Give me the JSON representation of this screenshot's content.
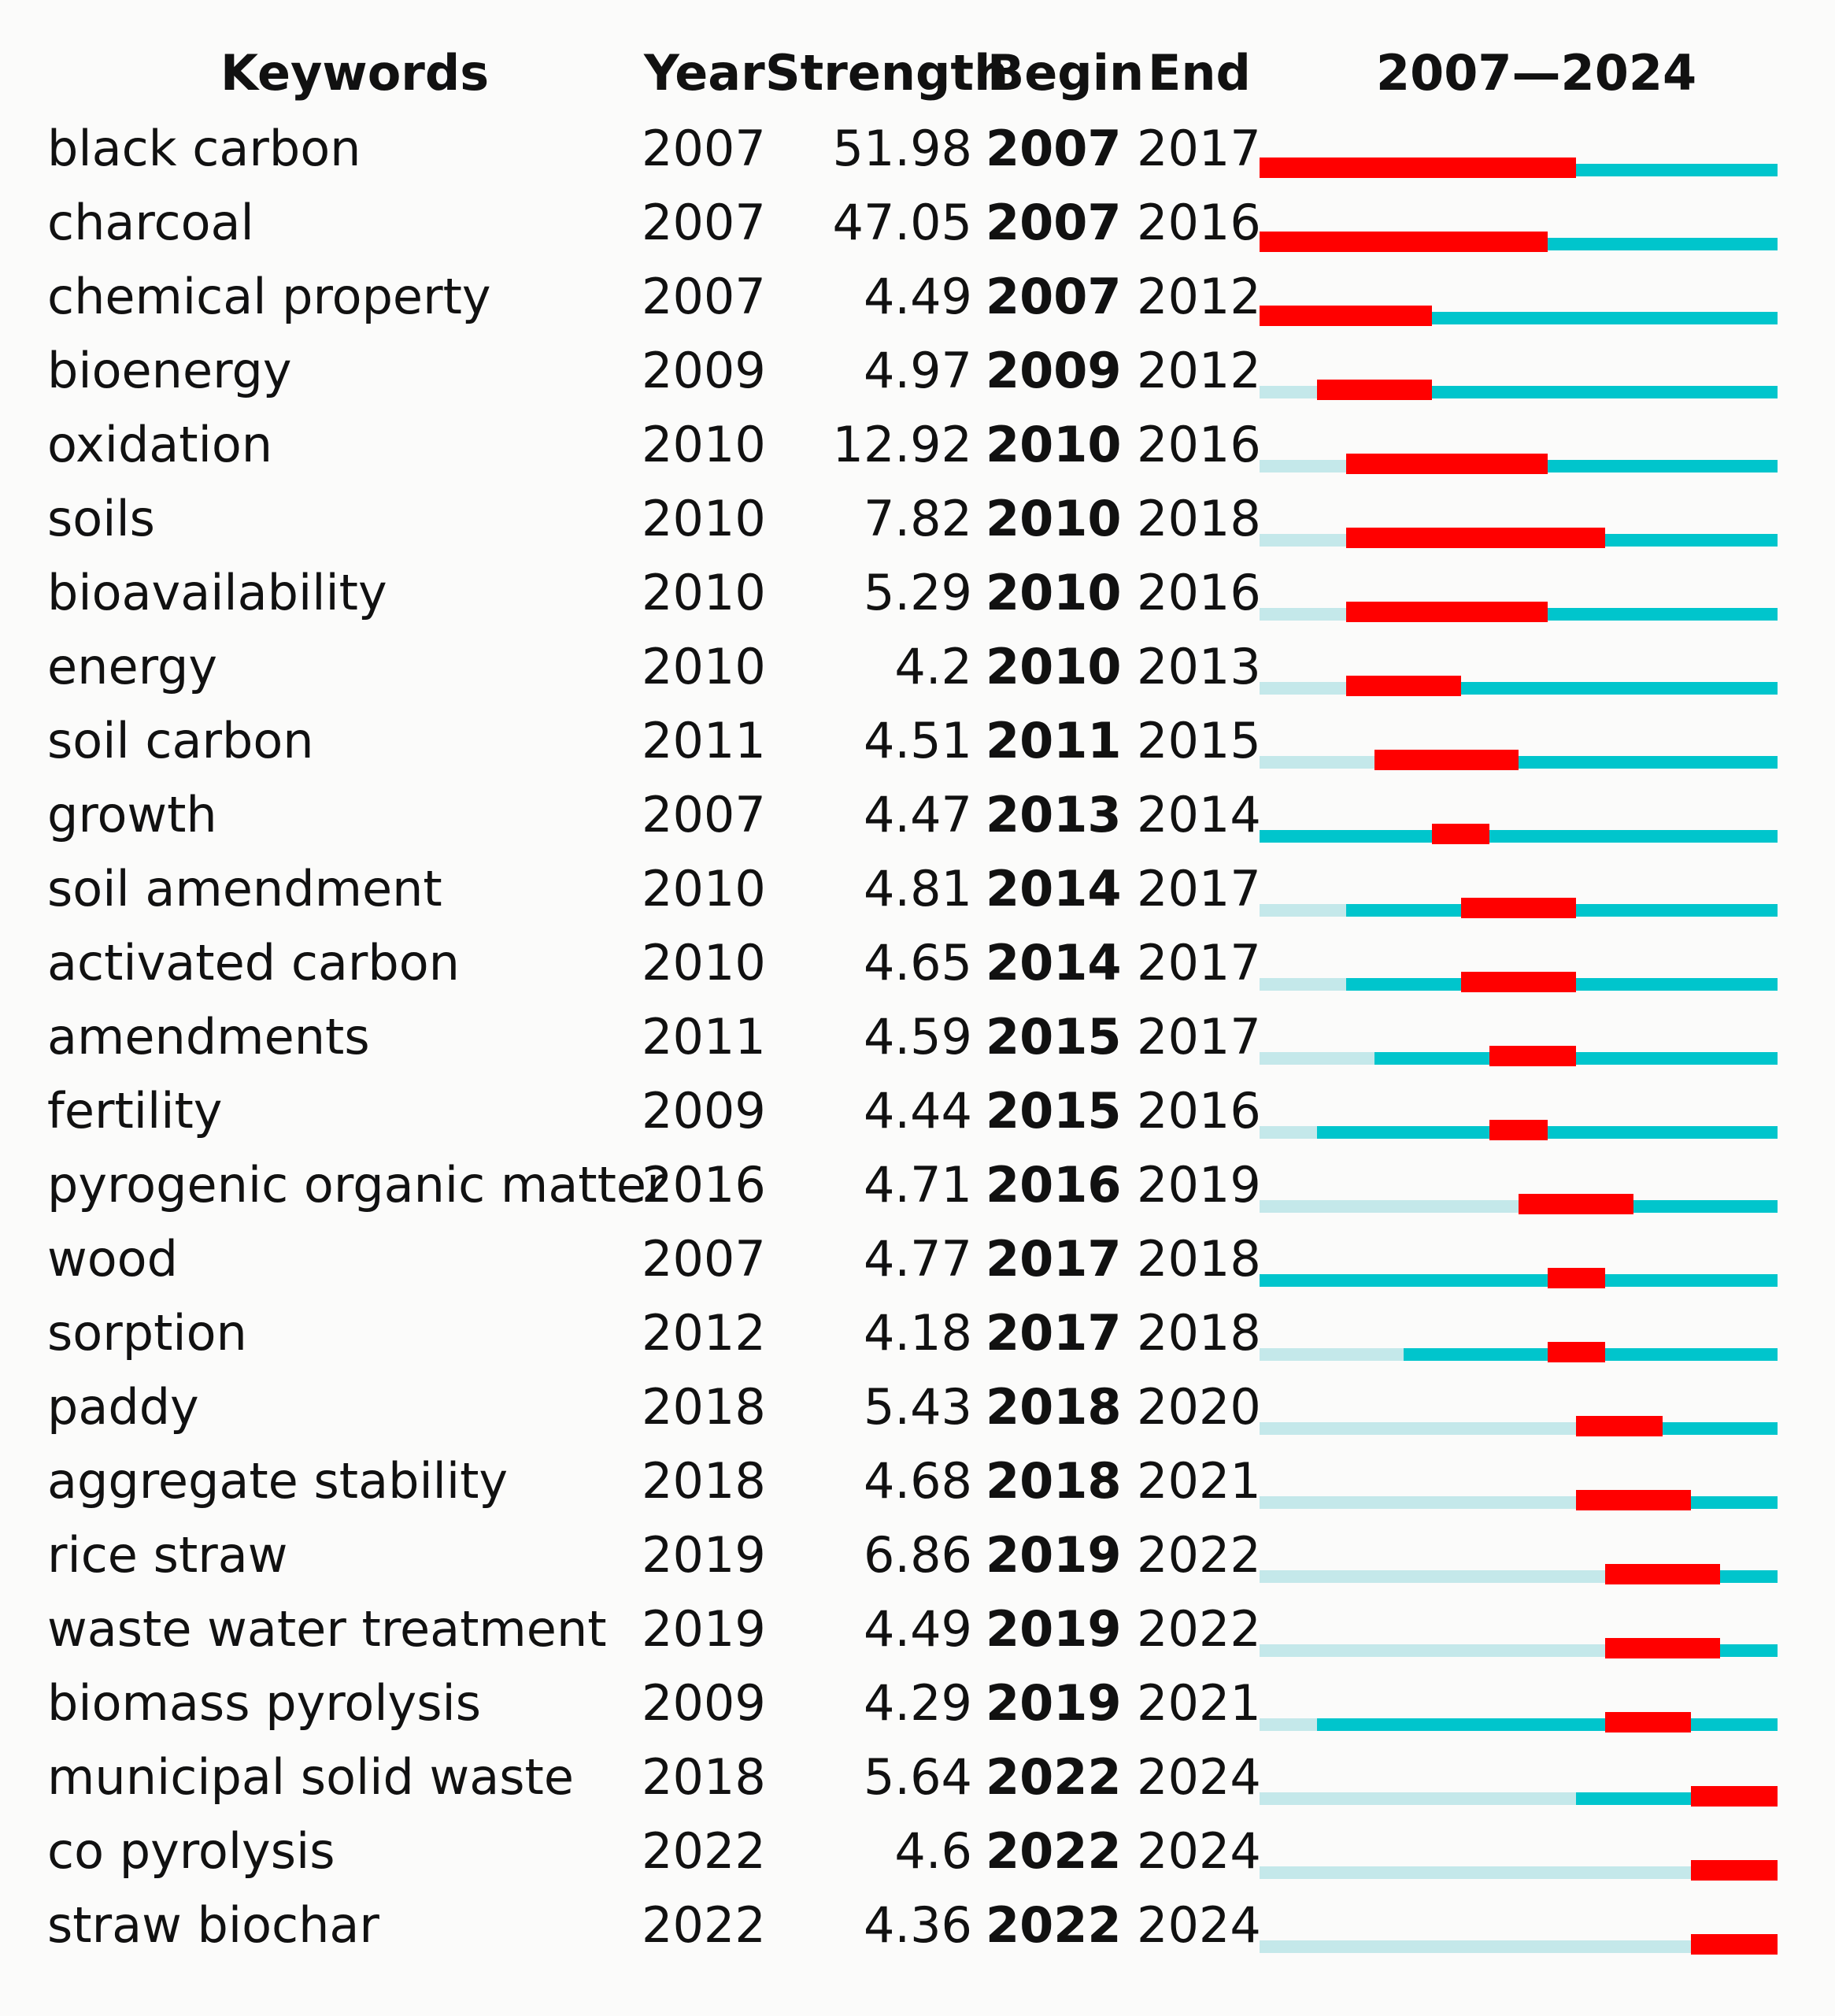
{
  "chart_data": {
    "type": "timeline",
    "title": "",
    "headers": {
      "keywords": "Keywords",
      "year": "Year",
      "strength": "Strength",
      "begin": "Begin",
      "end": "End",
      "range": "2007—2024"
    },
    "range": [
      2007,
      2024
    ],
    "colors": {
      "burst": "#ff0000",
      "active": "#00c5cc",
      "inactive": "#c4e8ea"
    },
    "rows": [
      {
        "keyword": "black carbon",
        "year": "2007",
        "strength": "51.98",
        "begin": "2007",
        "end": "2017"
      },
      {
        "keyword": "charcoal",
        "year": "2007",
        "strength": "47.05",
        "begin": "2007",
        "end": "2016"
      },
      {
        "keyword": "chemical property",
        "year": "2007",
        "strength": "4.49",
        "begin": "2007",
        "end": "2012"
      },
      {
        "keyword": "bioenergy",
        "year": "2009",
        "strength": "4.97",
        "begin": "2009",
        "end": "2012"
      },
      {
        "keyword": "oxidation",
        "year": "2010",
        "strength": "12.92",
        "begin": "2010",
        "end": "2016"
      },
      {
        "keyword": "soils",
        "year": "2010",
        "strength": "7.82",
        "begin": "2010",
        "end": "2018"
      },
      {
        "keyword": "bioavailability",
        "year": "2010",
        "strength": "5.29",
        "begin": "2010",
        "end": "2016"
      },
      {
        "keyword": "energy",
        "year": "2010",
        "strength": "4.2",
        "begin": "2010",
        "end": "2013"
      },
      {
        "keyword": "soil carbon",
        "year": "2011",
        "strength": "4.51",
        "begin": "2011",
        "end": "2015"
      },
      {
        "keyword": "growth",
        "year": "2007",
        "strength": "4.47",
        "begin": "2013",
        "end": "2014"
      },
      {
        "keyword": "soil amendment",
        "year": "2010",
        "strength": "4.81",
        "begin": "2014",
        "end": "2017"
      },
      {
        "keyword": "activated carbon",
        "year": "2010",
        "strength": "4.65",
        "begin": "2014",
        "end": "2017"
      },
      {
        "keyword": "amendments",
        "year": "2011",
        "strength": "4.59",
        "begin": "2015",
        "end": "2017"
      },
      {
        "keyword": "fertility",
        "year": "2009",
        "strength": "4.44",
        "begin": "2015",
        "end": "2016"
      },
      {
        "keyword": "pyrogenic organic matter",
        "year": "2016",
        "strength": "4.71",
        "begin": "2016",
        "end": "2019"
      },
      {
        "keyword": "wood",
        "year": "2007",
        "strength": "4.77",
        "begin": "2017",
        "end": "2018"
      },
      {
        "keyword": "sorption",
        "year": "2012",
        "strength": "4.18",
        "begin": "2017",
        "end": "2018"
      },
      {
        "keyword": "paddy",
        "year": "2018",
        "strength": "5.43",
        "begin": "2018",
        "end": "2020"
      },
      {
        "keyword": "aggregate stability",
        "year": "2018",
        "strength": "4.68",
        "begin": "2018",
        "end": "2021"
      },
      {
        "keyword": "rice straw",
        "year": "2019",
        "strength": "6.86",
        "begin": "2019",
        "end": "2022"
      },
      {
        "keyword": "waste water treatment",
        "year": "2019",
        "strength": "4.49",
        "begin": "2019",
        "end": "2022"
      },
      {
        "keyword": "biomass pyrolysis",
        "year": "2009",
        "strength": "4.29",
        "begin": "2019",
        "end": "2021"
      },
      {
        "keyword": "municipal solid waste",
        "year": "2018",
        "strength": "5.64",
        "begin": "2022",
        "end": "2024"
      },
      {
        "keyword": "co pyrolysis",
        "year": "2022",
        "strength": "4.6",
        "begin": "2022",
        "end": "2024"
      },
      {
        "keyword": "straw biochar",
        "year": "2022",
        "strength": "4.36",
        "begin": "2022",
        "end": "2024"
      }
    ]
  }
}
